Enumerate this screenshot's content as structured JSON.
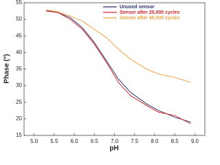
{
  "chart_data": {
    "type": "line",
    "x_label": "pH",
    "y_label": "Phase (°)",
    "x": [
      5.3,
      5.6,
      5.9,
      6.2,
      6.5,
      6.8,
      7.1,
      7.4,
      7.8,
      8.1,
      8.5,
      8.9
    ],
    "series": [
      {
        "name": "Unused sensor",
        "color": "#2b2f6b",
        "values": [
          52.7,
          52,
          50.5,
          47.5,
          43,
          37.5,
          32,
          28,
          24.5,
          22.5,
          20.5,
          19
        ]
      },
      {
        "name": "Sensor after 20,000 cycles",
        "color": "#d9262e",
        "values": [
          52.5,
          52,
          50,
          47,
          42.5,
          37,
          31,
          27,
          24,
          22,
          21,
          18.5
        ]
      },
      {
        "name": "Sensor after 40,000 cycles",
        "color": "#f0a040",
        "values": [
          52.8,
          52.3,
          51,
          49.5,
          47,
          44.5,
          41,
          38,
          35,
          33.5,
          32.5,
          31
        ]
      }
    ],
    "xlim": [
      4.75,
      9.25
    ],
    "xticks": [
      {
        "value": 5,
        "label": "5.0"
      },
      {
        "value": 5.5,
        "label": "5.5"
      },
      {
        "value": 6,
        "label": "6.0"
      },
      {
        "value": 6.5,
        "label": "6.5"
      },
      {
        "value": 7,
        "label": "7.0"
      },
      {
        "value": 7.5,
        "label": "7.5"
      },
      {
        "value": 8,
        "label": "8.0"
      },
      {
        "value": 8.5,
        "label": "8.5"
      },
      {
        "value": 9,
        "label": "9.0"
      }
    ],
    "ylim": [
      15,
      55
    ],
    "yticks": [
      15,
      20,
      25,
      30,
      35,
      40,
      45,
      50,
      55
    ],
    "legend": "upper right"
  }
}
